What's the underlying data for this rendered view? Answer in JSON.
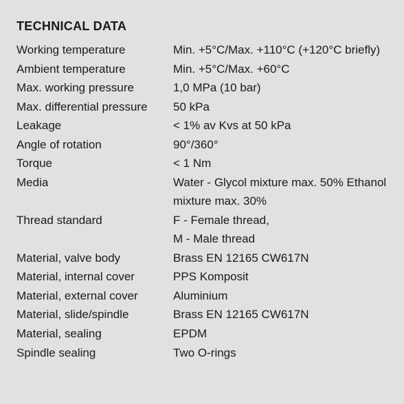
{
  "colors": {
    "background": "#e0e1e2",
    "text": "#1a1a1a"
  },
  "typography": {
    "title_fontsize_pt": 14,
    "body_fontsize_pt": 13,
    "font_family": "Helvetica Neue / DIN-like sans"
  },
  "title": "TECHNICAL DATA",
  "rows": [
    {
      "label": "Working temperature",
      "value": "Min. +5°C/Max. +110°C (+120°C briefly)"
    },
    {
      "label": "Ambient temperature",
      "value": "Min. +5°C/Max. +60°C"
    },
    {
      "label": "Max. working pressure",
      "value": "1,0 MPa (10 bar)"
    },
    {
      "label": "Max. differential pressure",
      "value": "50 kPa"
    },
    {
      "label": "Leakage",
      "value": "< 1% av Kvs at 50 kPa"
    },
    {
      "label": "Angle of rotation",
      "value": "90°/360°"
    },
    {
      "label": "Torque",
      "value": "< 1 Nm"
    },
    {
      "label": "Media",
      "value": "Water - Glycol mixture max. 50% Ethanol mixture max. 30%"
    },
    {
      "label": "Thread standard",
      "value": "F - Female thread,\nM - Male thread"
    },
    {
      "label": "Material, valve body",
      "value": "Brass EN 12165 CW617N"
    },
    {
      "label": "Material, internal cover",
      "value": "PPS Komposit"
    },
    {
      "label": "Material, external cover",
      "value": "Aluminium"
    },
    {
      "label": "Material, slide/spindle",
      "value": "Brass EN 12165 CW617N"
    },
    {
      "label": "Material, sealing",
      "value": "EPDM"
    },
    {
      "label": "Spindle sealing",
      "value": "Two O-rings"
    }
  ]
}
